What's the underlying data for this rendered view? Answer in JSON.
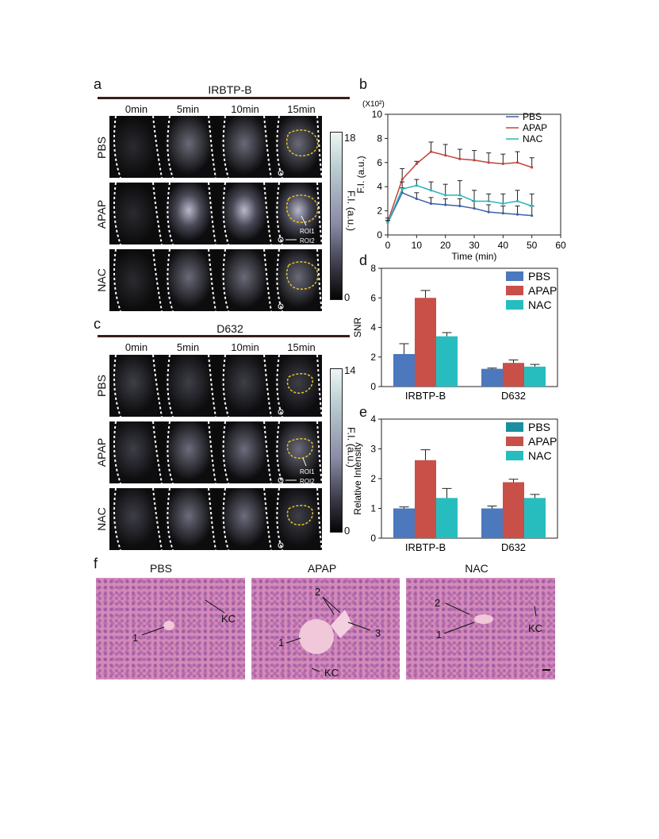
{
  "panels": {
    "a": {
      "label": "a",
      "title": "IRBTP-B",
      "times": [
        "0min",
        "5min",
        "10min",
        "15min"
      ],
      "rows": [
        "PBS",
        "APAP",
        "NAC"
      ],
      "colorbar": {
        "max": "18",
        "min": "0",
        "label": "F.I. (a.u.)"
      },
      "roi1": "ROI1",
      "roi2": "ROI2"
    },
    "c": {
      "label": "c",
      "title": "D632",
      "times": [
        "0min",
        "5min",
        "10min",
        "15min"
      ],
      "rows": [
        "PBS",
        "APAP",
        "NAC"
      ],
      "colorbar": {
        "max": "14",
        "min": "0",
        "label": "F.I. (a.u.)"
      },
      "roi1": "ROI1",
      "roi2": "ROI2"
    },
    "b": {
      "label": "b"
    },
    "d": {
      "label": "d"
    },
    "e": {
      "label": "e"
    },
    "f": {
      "label": "f",
      "titles": [
        "PBS",
        "APAP",
        "NAC"
      ],
      "annotations": {
        "pbs": [
          "1",
          "KC"
        ],
        "apap": [
          "1",
          "2",
          "3",
          "KC"
        ],
        "nac": [
          "1",
          "2",
          "KC"
        ]
      }
    }
  },
  "chart_data": [
    {
      "id": "b",
      "type": "line",
      "multiplier": "(X10²)",
      "xlabel": "Time (min)",
      "ylabel": "F.I. (a.u.)",
      "xlim": [
        0,
        60
      ],
      "ylim": [
        0,
        10
      ],
      "xticks": [
        "0",
        "10",
        "20",
        "30",
        "40",
        "50",
        "60"
      ],
      "yticks": [
        "0",
        "2",
        "4",
        "6",
        "8",
        "10"
      ],
      "legend": "top-right",
      "x": [
        0,
        5,
        10,
        15,
        20,
        25,
        30,
        35,
        40,
        45,
        50
      ],
      "series": [
        {
          "name": "PBS",
          "color": "#3d5fa8",
          "values": [
            1.0,
            3.5,
            3.0,
            2.6,
            2.5,
            2.4,
            2.2,
            1.9,
            1.8,
            1.7,
            1.6
          ],
          "err": [
            0.2,
            0.4,
            0.5,
            0.5,
            0.5,
            0.6,
            0.6,
            0.6,
            0.6,
            0.7,
            0.8
          ]
        },
        {
          "name": "APAP",
          "color": "#c0443c",
          "values": [
            1.1,
            4.6,
            5.9,
            6.9,
            6.6,
            6.3,
            6.2,
            6.0,
            5.9,
            6.0,
            5.6
          ],
          "err": [
            0.3,
            0.9,
            0.2,
            0.8,
            0.9,
            0.8,
            0.8,
            0.8,
            0.8,
            0.9,
            0.8
          ]
        },
        {
          "name": "NAC",
          "color": "#2ab3b8",
          "values": [
            1.0,
            3.8,
            4.1,
            3.7,
            3.3,
            3.3,
            2.8,
            2.8,
            2.6,
            2.8,
            2.4
          ],
          "err": [
            0.2,
            0.6,
            0.5,
            0.7,
            0.9,
            1.2,
            0.9,
            0.6,
            0.8,
            0.9,
            1.0
          ]
        }
      ]
    },
    {
      "id": "d",
      "type": "bar",
      "ylabel": "SNR",
      "ylim": [
        0,
        8
      ],
      "yticks": [
        "0",
        "2",
        "4",
        "6",
        "8"
      ],
      "categories": [
        "IRBTP-B",
        "D632"
      ],
      "legend": "top-right",
      "series": [
        {
          "name": "PBS",
          "color": "#4c78bd",
          "values": [
            2.2,
            1.2
          ],
          "err": [
            0.7,
            0.05
          ]
        },
        {
          "name": "APAP",
          "color": "#c94f49",
          "values": [
            6.0,
            1.6
          ],
          "err": [
            0.5,
            0.2
          ]
        },
        {
          "name": "NAC",
          "color": "#27bdbf",
          "values": [
            3.4,
            1.35
          ],
          "err": [
            0.25,
            0.15
          ]
        }
      ]
    },
    {
      "id": "e",
      "type": "bar",
      "ylabel": "Relative Intensity",
      "ylim": [
        0,
        4
      ],
      "yticks": [
        "0",
        "1",
        "2",
        "3",
        "4"
      ],
      "categories": [
        "IRBTP-B",
        "D632"
      ],
      "legend": "top-right",
      "series": [
        {
          "name": "PBS",
          "color": "#4c78bd",
          "legend_color": "#1b8f9e",
          "values": [
            1.0,
            1.0
          ],
          "err": [
            0.05,
            0.08
          ]
        },
        {
          "name": "APAP",
          "color": "#c94f49",
          "values": [
            2.62,
            1.88
          ],
          "err": [
            0.35,
            0.1
          ]
        },
        {
          "name": "NAC",
          "color": "#27bdbf",
          "values": [
            1.35,
            1.35
          ],
          "err": [
            0.32,
            0.12
          ]
        }
      ]
    }
  ]
}
